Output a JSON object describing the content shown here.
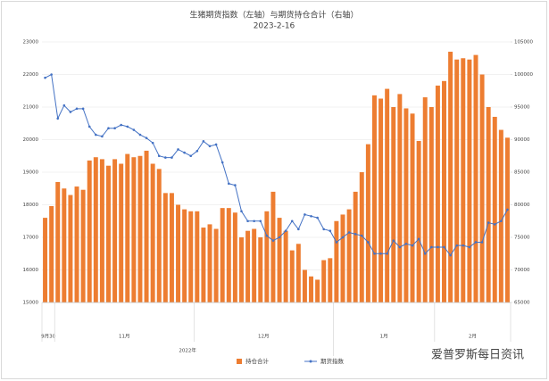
{
  "chart_data": {
    "type": "bar_line",
    "title": "生猪期货指数（左轴）与期货持仓合计（右轴）",
    "subtitle": "2023-2-16",
    "categories": [
      null,
      null,
      null,
      null,
      null,
      null,
      null,
      null,
      null,
      null,
      null,
      null,
      null,
      null,
      null,
      null,
      null,
      null,
      null,
      null,
      null,
      null,
      null,
      null,
      null,
      null,
      null,
      null,
      null,
      null,
      null,
      null,
      null,
      null,
      null,
      null,
      null,
      null,
      null,
      null,
      null,
      null,
      null,
      null,
      null,
      null,
      null,
      null,
      null,
      null,
      null,
      null,
      null,
      null,
      null,
      null,
      null,
      null,
      null,
      null,
      null,
      null,
      null,
      null,
      null,
      null,
      null,
      null,
      null,
      null,
      null,
      null,
      null,
      null
    ],
    "x_groups": [
      {
        "label": "9月30",
        "count": 2
      },
      {
        "label": "11月",
        "count": 22
      },
      {
        "label": "12月",
        "count": 22
      },
      {
        "label": "1月",
        "count": 16
      },
      {
        "label": "2月",
        "count": 12
      }
    ],
    "year_group": {
      "label": "2022年",
      "count": 46
    },
    "series": [
      {
        "name": "持仓合计",
        "type": "bar",
        "axis": "y2",
        "color": "#ed7d31",
        "values": [
          78000,
          79800,
          83500,
          82500,
          81500,
          82800,
          82300,
          86800,
          87300,
          87000,
          86000,
          87000,
          86300,
          87800,
          87300,
          87500,
          88300,
          86300,
          85500,
          81800,
          81800,
          80000,
          79300,
          79000,
          79000,
          76500,
          77000,
          76300,
          79500,
          79500,
          78800,
          75000,
          76000,
          76300,
          75000,
          79000,
          82000,
          78000,
          76000,
          73000,
          74000,
          70000,
          69000,
          68500,
          71500,
          71800,
          77500,
          78500,
          79300,
          82000,
          85000,
          89300,
          96800,
          96300,
          97800,
          95000,
          97000,
          94800,
          94000,
          89800,
          96500,
          95000,
          98300,
          99000,
          103500,
          102300,
          102500,
          102300,
          103000,
          100000,
          95000,
          93500,
          91500,
          90300
        ]
      },
      {
        "name": "期货指数",
        "type": "line",
        "axis": "y",
        "color": "#4472c4",
        "values": [
          21900,
          22000,
          20650,
          21050,
          20850,
          20950,
          20950,
          20400,
          20150,
          20100,
          20350,
          20350,
          20450,
          20400,
          20300,
          20150,
          20050,
          19900,
          19500,
          19450,
          19450,
          19700,
          19600,
          19500,
          19650,
          19950,
          19800,
          19850,
          19300,
          18650,
          18600,
          17800,
          17500,
          17500,
          17500,
          17050,
          16900,
          17000,
          17200,
          17500,
          17250,
          17700,
          17650,
          17600,
          17250,
          17200,
          16850,
          17000,
          17150,
          17100,
          17050,
          16850,
          16500,
          16500,
          16500,
          16900,
          16700,
          16800,
          16750,
          16950,
          16500,
          16700,
          16700,
          16700,
          16450,
          16750,
          16750,
          16700,
          16850,
          16850,
          17450,
          17400,
          17500,
          17850
        ]
      }
    ],
    "ylim": [
      15000,
      23000
    ],
    "yticks": [
      15000,
      16000,
      17000,
      18000,
      19000,
      20000,
      21000,
      22000,
      23000
    ],
    "y2lim": [
      65000,
      105000
    ],
    "y2ticks": [
      65000,
      70000,
      75000,
      80000,
      85000,
      90000,
      95000,
      100000,
      105000
    ],
    "grid": true,
    "legend": "bottom",
    "watermark": "爱普罗斯每日资讯"
  }
}
